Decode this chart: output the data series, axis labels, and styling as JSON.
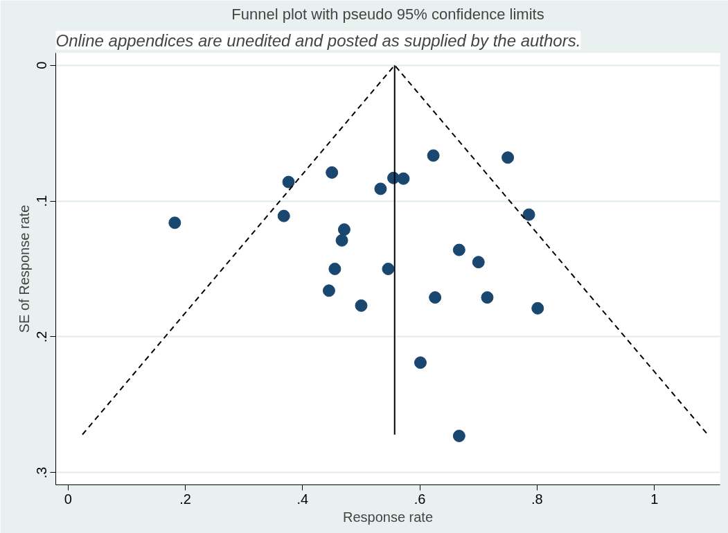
{
  "chart_data": {
    "type": "scatter",
    "title": "Funnel plot with pseudo 95% confidence limits",
    "xlabel": "Response rate",
    "ylabel": "SE of Response rate",
    "annotations": [
      "Online appendices are unedited and posted as supplied by the authors."
    ],
    "xlim": [
      -0.021,
      1.112
    ],
    "ylim": [
      0.309,
      -0.009
    ],
    "xticks": [
      0,
      {
        "value": 0.2,
        "label": ".2"
      },
      {
        "value": 0.4,
        "label": ".4"
      },
      {
        "value": 0.6,
        "label": ".6"
      },
      {
        "value": 0.8,
        "label": ".8"
      },
      1
    ],
    "yticks": [
      0,
      {
        "value": 0.1,
        "label": ".1"
      },
      {
        "value": 0.2,
        "label": ".2"
      },
      {
        "value": 0.3,
        "label": ".3"
      }
    ],
    "grid": "y",
    "series": [
      {
        "marker": "circle",
        "color": "#1a476f",
        "x": [
          0.182,
          0.376,
          0.45,
          0.368,
          0.533,
          0.555,
          0.572,
          0.471,
          0.467,
          0.455,
          0.546,
          0.445,
          0.5,
          0.623,
          0.75,
          0.786,
          0.667,
          0.7,
          0.626,
          0.715,
          0.801,
          0.601,
          0.667
        ],
        "values": [
          0.116,
          0.086,
          0.079,
          0.111,
          0.091,
          0.083,
          0.0835,
          0.121,
          0.129,
          0.15,
          0.15,
          0.166,
          0.177,
          0.0665,
          0.068,
          0.11,
          0.136,
          0.145,
          0.171,
          0.171,
          0.179,
          0.219,
          0.273
        ]
      },
      {
        "type": "line",
        "color": "#000000",
        "line_style": "solid",
        "x": [
          0.557,
          0.557
        ],
        "values": [
          0,
          0.272
        ]
      },
      {
        "type": "line",
        "color": "#000000",
        "line_style": "dashed",
        "x": [
          0.0245,
          0.557,
          1.091
        ],
        "values": [
          0.272,
          0,
          0.272
        ]
      }
    ]
  }
}
